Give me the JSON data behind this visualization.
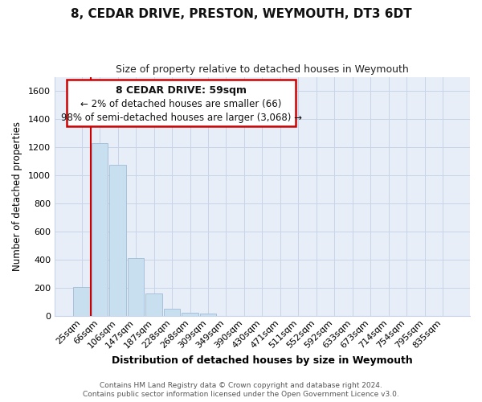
{
  "title": "8, CEDAR DRIVE, PRESTON, WEYMOUTH, DT3 6DT",
  "subtitle": "Size of property relative to detached houses in Weymouth",
  "xlabel": "Distribution of detached houses by size in Weymouth",
  "ylabel": "Number of detached properties",
  "categories": [
    "25sqm",
    "66sqm",
    "106sqm",
    "147sqm",
    "187sqm",
    "228sqm",
    "268sqm",
    "309sqm",
    "349sqm",
    "390sqm",
    "430sqm",
    "471sqm",
    "511sqm",
    "552sqm",
    "592sqm",
    "633sqm",
    "673sqm",
    "714sqm",
    "754sqm",
    "795sqm",
    "835sqm"
  ],
  "values": [
    205,
    1230,
    1075,
    410,
    160,
    55,
    25,
    20,
    0,
    0,
    0,
    0,
    0,
    0,
    0,
    0,
    0,
    0,
    0,
    0,
    0
  ],
  "bar_color": "#c8dff0",
  "bar_edge_color": "#a0bcd8",
  "ylim": [
    0,
    1700
  ],
  "yticks": [
    0,
    200,
    400,
    600,
    800,
    1000,
    1200,
    1400,
    1600
  ],
  "annotation_title": "8 CEDAR DRIVE: 59sqm",
  "annotation_line1": "← 2% of detached houses are smaller (66)",
  "annotation_line2": "98% of semi-detached houses are larger (3,068) →",
  "annotation_box_color": "#ffffff",
  "annotation_box_edge_color": "#cc0000",
  "footer_line1": "Contains HM Land Registry data © Crown copyright and database right 2024.",
  "footer_line2": "Contains public sector information licensed under the Open Government Licence v3.0.",
  "grid_color": "#c8d4e8",
  "background_color": "#ffffff",
  "plot_bg_color": "#e8eef8",
  "property_line_color": "#cc0000",
  "property_line_x": 0.5,
  "title_fontsize": 11,
  "subtitle_fontsize": 9,
  "xlabel_fontsize": 9,
  "ylabel_fontsize": 8.5,
  "tick_fontsize": 8,
  "footer_fontsize": 6.5,
  "ann_title_fontsize": 9,
  "ann_text_fontsize": 8.5
}
